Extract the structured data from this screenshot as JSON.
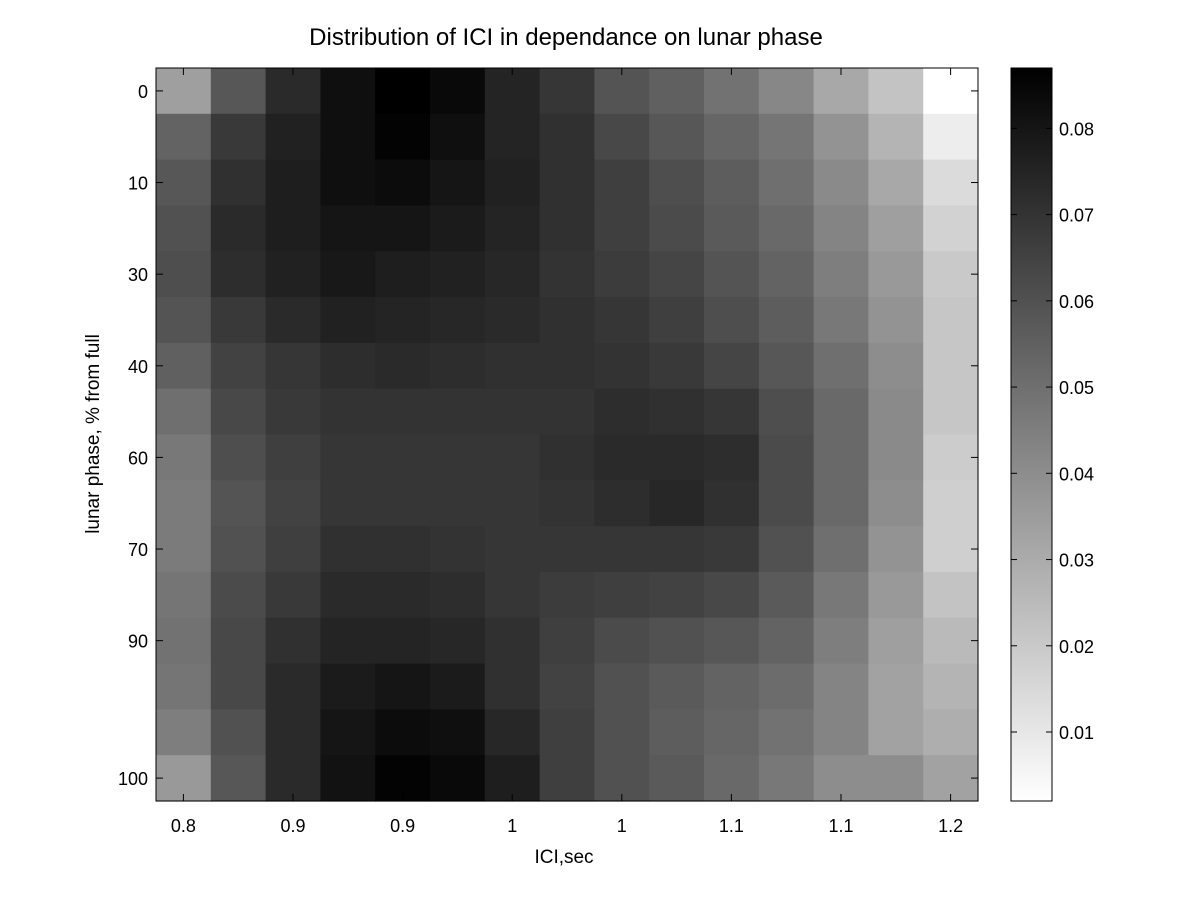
{
  "chart_data": {
    "type": "heatmap",
    "title": "Distribution of ICI in dependance on lunar phase",
    "xlabel": "ICI,sec",
    "ylabel": "lunar phase, % from full",
    "x_tick_labels": [
      "0.8",
      "0.9",
      "0.9",
      "1",
      "1",
      "1.1",
      "1.1",
      "1.2"
    ],
    "y_tick_labels": [
      "0",
      "10",
      "30",
      "40",
      "60",
      "70",
      "90",
      "100"
    ],
    "colorbar": {
      "range": [
        0.002,
        0.087
      ],
      "ticks": [
        0.01,
        0.02,
        0.03,
        0.04,
        0.05,
        0.06,
        0.07,
        0.08
      ],
      "tick_labels": [
        "0.01",
        "0.02",
        "0.03",
        "0.04",
        "0.05",
        "0.06",
        "0.07",
        "0.08"
      ],
      "colormap": "gray",
      "low_color": "#ffffff",
      "high_color": "#000000"
    },
    "rows": 16,
    "cols": 15,
    "values": [
      [
        0.034,
        0.058,
        0.073,
        0.082,
        0.087,
        0.084,
        0.075,
        0.069,
        0.059,
        0.055,
        0.049,
        0.042,
        0.031,
        0.022,
        0.002
      ],
      [
        0.054,
        0.068,
        0.076,
        0.082,
        0.086,
        0.082,
        0.075,
        0.071,
        0.063,
        0.058,
        0.053,
        0.048,
        0.038,
        0.027,
        0.008
      ],
      [
        0.058,
        0.071,
        0.077,
        0.082,
        0.083,
        0.08,
        0.076,
        0.071,
        0.066,
        0.061,
        0.056,
        0.05,
        0.041,
        0.031,
        0.014
      ],
      [
        0.06,
        0.073,
        0.077,
        0.08,
        0.08,
        0.078,
        0.075,
        0.071,
        0.066,
        0.062,
        0.057,
        0.052,
        0.043,
        0.034,
        0.017
      ],
      [
        0.061,
        0.072,
        0.076,
        0.079,
        0.077,
        0.076,
        0.074,
        0.07,
        0.067,
        0.064,
        0.059,
        0.054,
        0.045,
        0.036,
        0.02
      ],
      [
        0.059,
        0.068,
        0.073,
        0.076,
        0.075,
        0.074,
        0.073,
        0.071,
        0.069,
        0.066,
        0.061,
        0.056,
        0.047,
        0.038,
        0.021
      ],
      [
        0.055,
        0.065,
        0.069,
        0.072,
        0.073,
        0.072,
        0.071,
        0.071,
        0.07,
        0.068,
        0.064,
        0.058,
        0.05,
        0.04,
        0.021
      ],
      [
        0.05,
        0.063,
        0.068,
        0.07,
        0.07,
        0.07,
        0.07,
        0.07,
        0.072,
        0.071,
        0.069,
        0.061,
        0.052,
        0.041,
        0.021
      ],
      [
        0.047,
        0.061,
        0.066,
        0.069,
        0.069,
        0.069,
        0.069,
        0.071,
        0.073,
        0.073,
        0.072,
        0.062,
        0.052,
        0.041,
        0.019
      ],
      [
        0.046,
        0.059,
        0.065,
        0.069,
        0.069,
        0.069,
        0.069,
        0.07,
        0.072,
        0.074,
        0.071,
        0.062,
        0.052,
        0.04,
        0.018
      ],
      [
        0.046,
        0.06,
        0.066,
        0.071,
        0.071,
        0.07,
        0.069,
        0.069,
        0.069,
        0.069,
        0.068,
        0.06,
        0.05,
        0.038,
        0.018
      ],
      [
        0.048,
        0.062,
        0.068,
        0.073,
        0.073,
        0.072,
        0.069,
        0.067,
        0.066,
        0.065,
        0.063,
        0.057,
        0.047,
        0.036,
        0.022
      ],
      [
        0.049,
        0.063,
        0.071,
        0.075,
        0.075,
        0.074,
        0.071,
        0.066,
        0.062,
        0.06,
        0.058,
        0.054,
        0.045,
        0.034,
        0.025
      ],
      [
        0.048,
        0.063,
        0.073,
        0.078,
        0.08,
        0.078,
        0.071,
        0.065,
        0.06,
        0.057,
        0.054,
        0.051,
        0.043,
        0.033,
        0.027
      ],
      [
        0.045,
        0.06,
        0.073,
        0.08,
        0.083,
        0.082,
        0.074,
        0.066,
        0.06,
        0.056,
        0.053,
        0.049,
        0.043,
        0.033,
        0.029
      ],
      [
        0.036,
        0.058,
        0.073,
        0.081,
        0.086,
        0.084,
        0.077,
        0.066,
        0.06,
        0.057,
        0.052,
        0.047,
        0.04,
        0.04,
        0.033
      ]
    ]
  }
}
